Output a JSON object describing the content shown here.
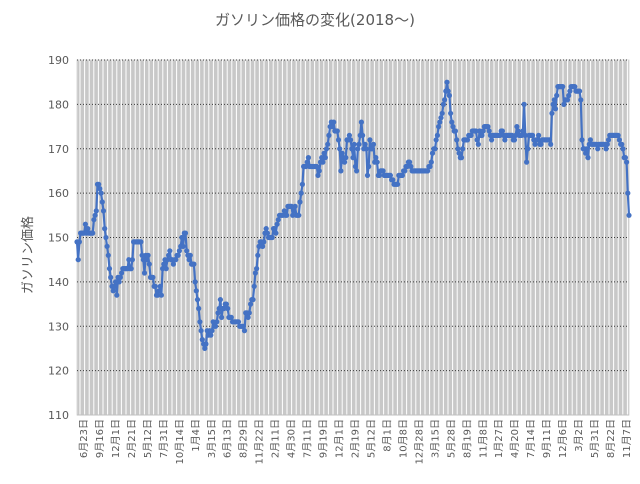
{
  "chart_data": {
    "type": "line",
    "title": "ガソリン価格の変化(2018〜)",
    "ylabel": "ガソリン価格",
    "xlabel": "",
    "ylim": [
      110,
      190
    ],
    "yticks": [
      110,
      120,
      130,
      140,
      150,
      160,
      170,
      180,
      190
    ],
    "xticks": [
      "6月23日",
      "9月16日",
      "12月1日",
      "2月21日",
      "5月12日",
      "7月31日",
      "10月14日",
      "1月4日",
      "3月15日",
      "6月13日",
      "8月29日",
      "11月22日",
      "2月11日",
      "4月30日",
      "7月11日",
      "9月19日",
      "12月1日",
      "2月19日",
      "5月12日",
      "8月1日",
      "10月8日",
      "12月28日",
      "3月15日",
      "5月28日",
      "8月19日",
      "11月8日",
      "1月27日",
      "4月20日",
      "7月14日",
      "9月11日",
      "12月6日",
      "3月2日",
      "5月31日",
      "8月22日",
      "11月7日"
    ],
    "grid": true,
    "legend": "none",
    "colors": {
      "line": "#4472c4",
      "plot_bg": "#c8c8c8",
      "grid": "#ffffff",
      "text": "#595959"
    },
    "series": [
      {
        "values": [
          149,
          145,
          149,
          151,
          151,
          151,
          151,
          153,
          151,
          152,
          151,
          151,
          151,
          151,
          154,
          155,
          156,
          162,
          162,
          161,
          160,
          158,
          156,
          152,
          150,
          148,
          146,
          143,
          141,
          139,
          138,
          139,
          140,
          137,
          141,
          140,
          141,
          142,
          143,
          143,
          143,
          143,
          143,
          145,
          143,
          143,
          145,
          149,
          149,
          149,
          149,
          149,
          149,
          149,
          146,
          145,
          142,
          146,
          145,
          146,
          144,
          141,
          141,
          141,
          139,
          139,
          137,
          137,
          138,
          139,
          137,
          143,
          144,
          145,
          143,
          145,
          146,
          147,
          145,
          145,
          144,
          145,
          145,
          146,
          146,
          147,
          148,
          150,
          148,
          151,
          151,
          147,
          146,
          145,
          146,
          144,
          144,
          144,
          140,
          138,
          136,
          134,
          131,
          129,
          127,
          126,
          125,
          126,
          129,
          128,
          129,
          128,
          129,
          131,
          130,
          130,
          131,
          133,
          134,
          136,
          132,
          134,
          134,
          135,
          135,
          134,
          132,
          132,
          132,
          131,
          131,
          131,
          131,
          131,
          131,
          130,
          130,
          130,
          130,
          129,
          133,
          133,
          132,
          133,
          135,
          136,
          136,
          139,
          142,
          143,
          146,
          148,
          149,
          149,
          148,
          149,
          151,
          152,
          151,
          150,
          150,
          150,
          150,
          152,
          152,
          151,
          153,
          154,
          155,
          155,
          155,
          155,
          156,
          155,
          155,
          157,
          157,
          157,
          157,
          155,
          156,
          157,
          155,
          155,
          155,
          158,
          160,
          162,
          166,
          166,
          166,
          167,
          168,
          166,
          166,
          166,
          166,
          166,
          166,
          166,
          164,
          165,
          167,
          168,
          167,
          169,
          168,
          170,
          171,
          173,
          175,
          176,
          175,
          176,
          174,
          174,
          174,
          172,
          170,
          165,
          169,
          168,
          167,
          168,
          172,
          172,
          173,
          172,
          170,
          168,
          171,
          166,
          165,
          170,
          171,
          173,
          176,
          173,
          170,
          171,
          170,
          164,
          166,
          172,
          170,
          170,
          171,
          167,
          168,
          167,
          164,
          164,
          165,
          165,
          165,
          164,
          164,
          164,
          164,
          164,
          164,
          163,
          163,
          162,
          162,
          162,
          162,
          164,
          164,
          164,
          164,
          165,
          165,
          166,
          166,
          167,
          167,
          166,
          165,
          165,
          165,
          165,
          165,
          165,
          165,
          165,
          165,
          165,
          165,
          165,
          165,
          165,
          166,
          166,
          167,
          169,
          170,
          170,
          172,
          173,
          175,
          176,
          177,
          178,
          180,
          181,
          183,
          185,
          183,
          182,
          178,
          176,
          175,
          174,
          174,
          172,
          170,
          169,
          168,
          168,
          170,
          172,
          172,
          172,
          172,
          173,
          173,
          173,
          174,
          174,
          174,
          174,
          172,
          171,
          174,
          173,
          173,
          174,
          175,
          175,
          175,
          175,
          174,
          173,
          172,
          173,
          173,
          173,
          173,
          173,
          173,
          173,
          174,
          174,
          173,
          172,
          173,
          173,
          173,
          173,
          173,
          173,
          172,
          172,
          173,
          175,
          174,
          173,
          173,
          173,
          174,
          180,
          173,
          167,
          170,
          173,
          173,
          173,
          173,
          172,
          171,
          172,
          172,
          173,
          171,
          171,
          172,
          172,
          172,
          172,
          172,
          172,
          172,
          171,
          178,
          180,
          181,
          179,
          182,
          184,
          184,
          184,
          184,
          184,
          180,
          181,
          181,
          181,
          182,
          183,
          184,
          184,
          184,
          184,
          183,
          183,
          183,
          183,
          181,
          172,
          170,
          170,
          169,
          170,
          168,
          171,
          172,
          171,
          171,
          171,
          171,
          171,
          170,
          171,
          171,
          171,
          171,
          171,
          171,
          170,
          171,
          172,
          173,
          173,
          173,
          173,
          173,
          173,
          173,
          173,
          172,
          171,
          171,
          170,
          168,
          168,
          167,
          160,
          155
        ]
      }
    ]
  }
}
